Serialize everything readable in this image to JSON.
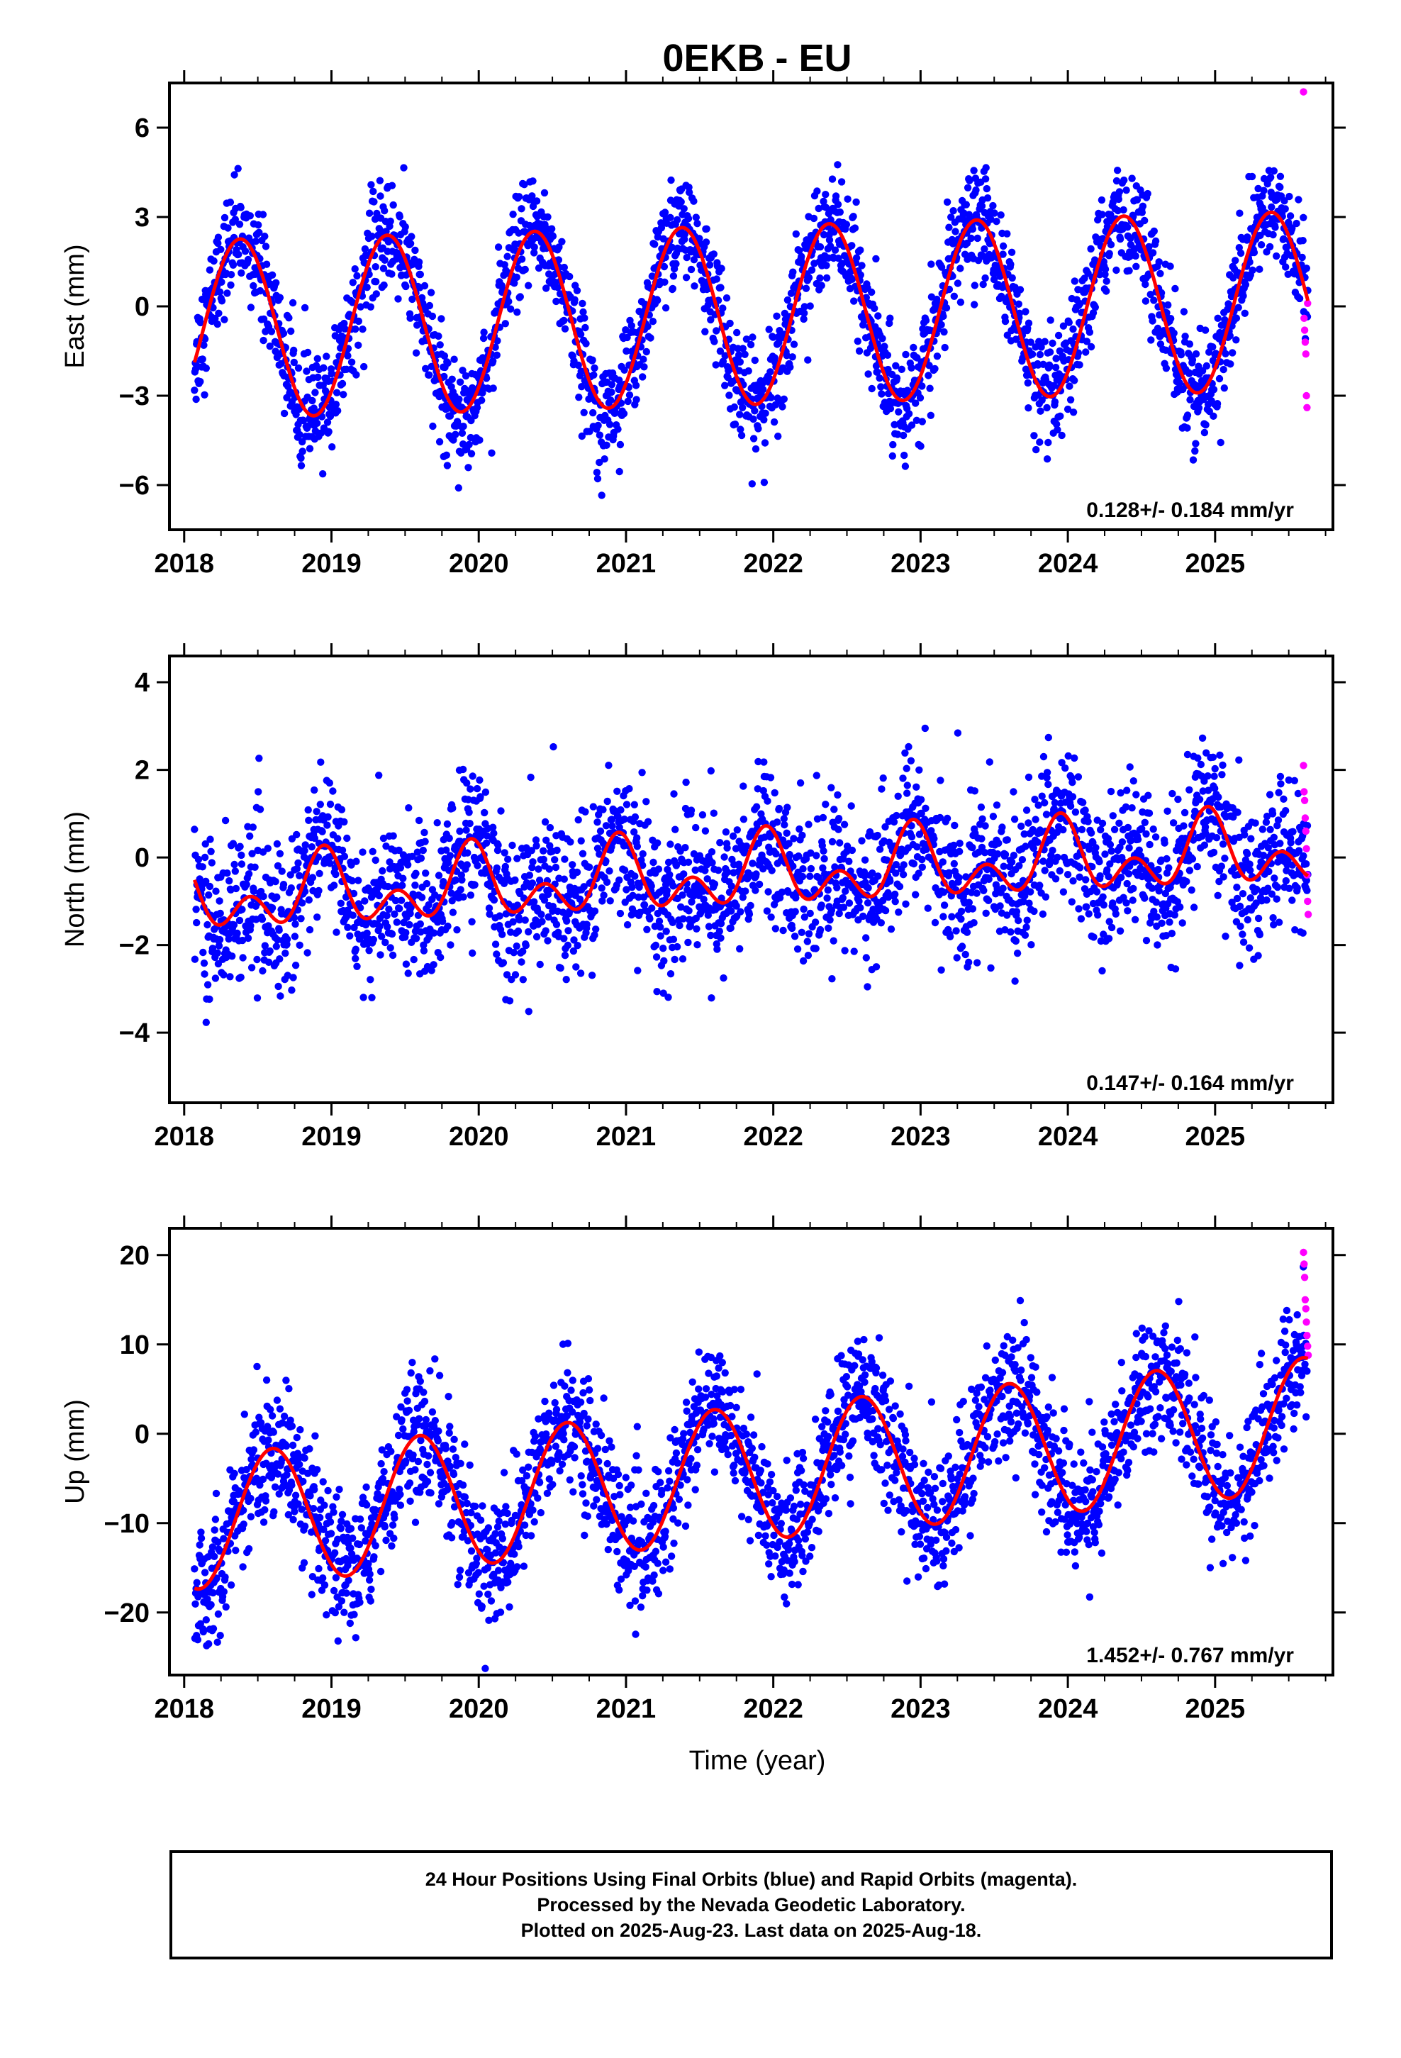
{
  "chart_data": {
    "title": "0EKB - EU",
    "xlabel": "Time (year)",
    "type": "scatter",
    "x_ticks": [
      2018,
      2019,
      2020,
      2021,
      2022,
      2023,
      2024,
      2025
    ],
    "xlim": [
      2017.9,
      2025.8
    ],
    "colors": {
      "final_orbits": "#0000ff",
      "rapid_orbits": "#ff00ff",
      "model_fit": "#ff0000"
    },
    "panels": [
      {
        "ylabel": "East (mm)",
        "ylim": [
          -7.5,
          7.5
        ],
        "y_ticks": [
          -6,
          -3,
          0,
          3,
          6
        ],
        "y_tick_labels": [
          "−6",
          "−3",
          "0",
          "3",
          "6"
        ],
        "velocity": "0.128+/- 0.184 mm/yr",
        "model": {
          "rate": 0.128,
          "offset": -0.3,
          "annual_amp": 3.0,
          "annual_peak": 0.38,
          "semi_amp": 0.0,
          "semi_peak": 0.0
        },
        "scatter_sd": 0.9,
        "rapid_values": [
          7.2,
          -0.4,
          -0.8,
          -1.2,
          -1.6,
          -3.0,
          -3.4,
          0.1
        ]
      },
      {
        "ylabel": "North (mm)",
        "ylim": [
          -5.6,
          4.6
        ],
        "y_ticks": [
          -4,
          -2,
          0,
          2,
          4
        ],
        "y_tick_labels": [
          "−4",
          "−2",
          "0",
          "2",
          "4"
        ],
        "velocity": "0.147+/- 0.164 mm/yr",
        "model": {
          "rate": 0.147,
          "offset": -0.4,
          "annual_amp": 0.55,
          "annual_peak": 0.95,
          "semi_amp": 0.55,
          "semi_peak": 0.95
        },
        "scatter_sd": 0.85,
        "rapid_values": [
          2.1,
          1.5,
          1.3,
          0.9,
          0.6,
          0.2,
          -0.4,
          -1.0,
          -1.3
        ]
      },
      {
        "ylabel": "Up (mm)",
        "ylim": [
          -27,
          23
        ],
        "y_ticks": [
          -20,
          -10,
          0,
          10,
          20
        ],
        "y_tick_labels": [
          "−20",
          "−10",
          "0",
          "10",
          "20"
        ],
        "velocity": "1.452+/- 0.767 mm/yr",
        "model": {
          "rate": 1.452,
          "offset": -4.5,
          "annual_amp": 7.5,
          "annual_peak": 0.6,
          "semi_amp": 0.0,
          "semi_peak": 0.0
        },
        "scatter_sd": 3.6,
        "rapid_values": [
          20.3,
          19.0,
          17.5,
          15.0,
          14.0,
          12.5,
          11.0,
          9.8,
          8.8
        ]
      }
    ],
    "start_year": 2018.07,
    "end_year": 2025.63,
    "rapid_start_year": 2025.6
  },
  "footer": {
    "line1": "24 Hour Positions Using Final Orbits (blue) and Rapid Orbits (magenta).",
    "line2": "Processed by the Nevada Geodetic Laboratory.",
    "line3": "Plotted on 2025-Aug-23. Last data on 2025-Aug-18."
  }
}
